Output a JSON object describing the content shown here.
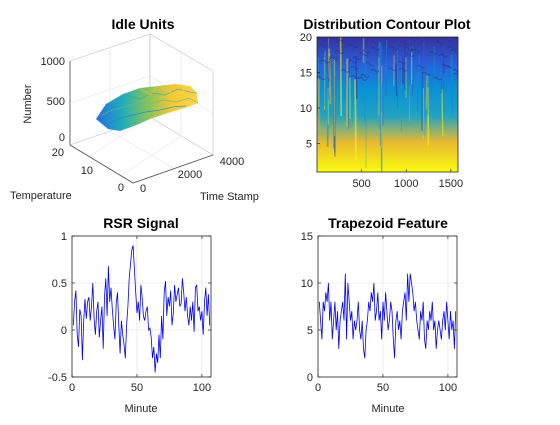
{
  "figure": {
    "background": "#ffffff"
  },
  "chart_data": [
    {
      "id": "idle-units",
      "type": "surface",
      "title": "Idle Units",
      "xlabel": "Time Stamp",
      "ylabel": "Temperature",
      "zlabel": "Number",
      "xlim": [
        0,
        4000
      ],
      "ylim": [
        0,
        20
      ],
      "zlim": [
        0,
        1000
      ],
      "xticks": [
        0,
        2000,
        4000
      ],
      "yticks": [
        0,
        10,
        20
      ],
      "zticks": [
        0,
        500,
        1000
      ],
      "surface_range": {
        "x": [
          500,
          3500
        ],
        "y": [
          2,
          12
        ],
        "z": [
          250,
          600
        ]
      },
      "colormap": "parula",
      "grid": true
    },
    {
      "id": "distribution-contour",
      "type": "contour",
      "title": "Distribution Contour Plot",
      "xlim": [
        0,
        1580
      ],
      "ylim": [
        1,
        20
      ],
      "xticks": [
        500,
        1000,
        1500
      ],
      "yticks": [
        5,
        10,
        15,
        20
      ],
      "colormap": "parula",
      "grid": false
    },
    {
      "id": "rsr-signal",
      "type": "line",
      "title": "RSR Signal",
      "xlabel": "Minute",
      "ylabel": "",
      "xlim": [
        0,
        107
      ],
      "ylim": [
        -0.5,
        1
      ],
      "xticks": [
        0,
        50,
        100
      ],
      "yticks": [
        -0.5,
        0,
        0.5,
        1
      ],
      "yticklabels": [
        "-0.5",
        "0",
        "0.5",
        "1"
      ],
      "grid": true,
      "series": [
        {
          "color": "#0000ff",
          "x": [
            1,
            2,
            3,
            4,
            5,
            6,
            7,
            8,
            9,
            10,
            11,
            12,
            13,
            14,
            15,
            16,
            17,
            18,
            19,
            20,
            21,
            22,
            23,
            24,
            25,
            26,
            27,
            28,
            29,
            30,
            31,
            32,
            33,
            34,
            35,
            36,
            37,
            38,
            39,
            40,
            41,
            42,
            43,
            44,
            45,
            46,
            47,
            48,
            49,
            50,
            51,
            52,
            53,
            54,
            55,
            56,
            57,
            58,
            59,
            60,
            61,
            62,
            63,
            64,
            65,
            66,
            67,
            68,
            69,
            70,
            71,
            72,
            73,
            74,
            75,
            76,
            77,
            78,
            79,
            80,
            81,
            82,
            83,
            84,
            85,
            86,
            87,
            88,
            89,
            90,
            91,
            92,
            93,
            94,
            95,
            96,
            97,
            98,
            99,
            100,
            101,
            102,
            103,
            104,
            105,
            106
          ],
          "values": [
            0.05,
            0.3,
            0.42,
            -0.05,
            -0.18,
            0.22,
            0.15,
            -0.32,
            0.1,
            0.33,
            0.12,
            0.3,
            0.35,
            0.1,
            0.25,
            0.5,
            0.12,
            -0.05,
            0.2,
            0.3,
            -0.08,
            0.1,
            0.25,
            -0.2,
            0.35,
            0.55,
            0.15,
            0.68,
            0.3,
            0.45,
            0.22,
            0.05,
            -0.1,
            0.28,
            0.4,
            0.05,
            -0.25,
            0.1,
            -0.05,
            -0.15,
            -0.3,
            0.05,
            0.25,
            0.55,
            0.7,
            0.85,
            0.9,
            0.65,
            0.4,
            0.18,
            0.3,
            0.1,
            0.48,
            0.35,
            0.15,
            0.1,
            0.2,
            0.25,
            0.0,
            0.02,
            -0.08,
            -0.3,
            -0.18,
            -0.45,
            -0.25,
            -0.35,
            -0.05,
            -0.3,
            0.15,
            -0.1,
            0.4,
            0.52,
            0.15,
            0.35,
            0.25,
            0.42,
            0.05,
            0.18,
            0.48,
            0.3,
            0.38,
            0.45,
            0.25,
            0.28,
            0.55,
            0.4,
            0.2,
            0.35,
            0.15,
            0.05,
            0.25,
            0.1,
            0.3,
            -0.02,
            0.45,
            0.48,
            0.2,
            0.25,
            0.1,
            0.2,
            -0.05,
            0.3,
            0.45,
            0.15,
            0.38,
            0.05
          ]
        }
      ]
    },
    {
      "id": "trapezoid-feature",
      "type": "line",
      "title": "Trapezoid Feature",
      "xlabel": "Minute",
      "ylabel": "",
      "xlim": [
        0,
        107
      ],
      "ylim": [
        0,
        15
      ],
      "xticks": [
        0,
        50,
        100
      ],
      "yticks": [
        0,
        5,
        10,
        15
      ],
      "grid": true,
      "series": [
        {
          "color": "#0000ff",
          "x": [
            1,
            2,
            3,
            4,
            5,
            6,
            7,
            8,
            9,
            10,
            11,
            12,
            13,
            14,
            15,
            16,
            17,
            18,
            19,
            20,
            21,
            22,
            23,
            24,
            25,
            26,
            27,
            28,
            29,
            30,
            31,
            32,
            33,
            34,
            35,
            36,
            37,
            38,
            39,
            40,
            41,
            42,
            43,
            44,
            45,
            46,
            47,
            48,
            49,
            50,
            51,
            52,
            53,
            54,
            55,
            56,
            57,
            58,
            59,
            60,
            61,
            62,
            63,
            64,
            65,
            66,
            67,
            68,
            69,
            70,
            71,
            72,
            73,
            74,
            75,
            76,
            77,
            78,
            79,
            80,
            81,
            82,
            83,
            84,
            85,
            86,
            87,
            88,
            89,
            90,
            91,
            92,
            93,
            94,
            95,
            96,
            97,
            98,
            99,
            100,
            101,
            102,
            103,
            104,
            105,
            106
          ],
          "values": [
            8,
            6,
            4,
            8,
            7,
            9,
            8,
            10,
            6,
            8,
            4,
            6,
            8,
            5,
            7,
            3,
            6,
            7,
            8,
            6,
            11,
            4,
            10,
            8,
            6,
            7,
            4,
            6,
            5,
            6,
            8,
            5,
            4,
            6,
            3,
            2,
            5,
            6,
            8,
            7,
            9,
            8,
            10,
            6,
            7,
            9,
            6,
            7,
            4,
            8,
            6,
            9,
            7,
            5,
            6,
            8,
            7,
            4,
            2,
            6,
            7,
            5,
            6,
            4,
            7,
            8,
            9,
            6,
            11,
            8,
            11,
            10,
            9,
            7,
            8,
            6,
            5,
            4,
            7,
            6,
            8,
            4,
            3,
            6,
            5,
            7,
            6,
            8,
            5,
            6,
            3,
            5,
            6,
            5,
            4,
            6,
            7,
            5,
            8,
            6,
            4,
            7,
            5,
            6,
            3,
            7
          ]
        }
      ]
    }
  ]
}
